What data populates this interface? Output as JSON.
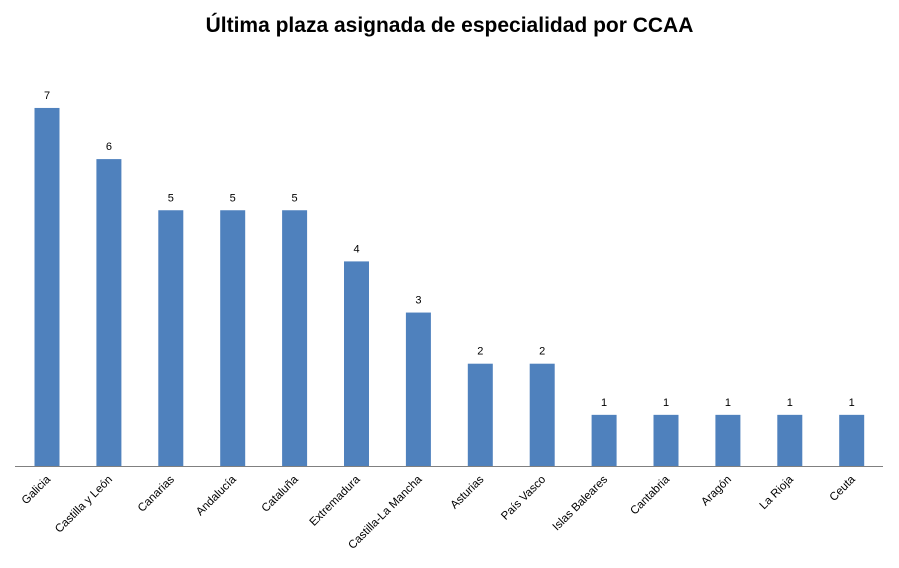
{
  "chart_data": {
    "type": "bar",
    "title": "Última plaza asignada de especialidad por CCAA",
    "xlabel": "",
    "ylabel": "",
    "categories": [
      "Galicia",
      "Castilla y León",
      "Canarias",
      "Andalucía",
      "Cataluña",
      "Extremadura",
      "Castilla-La Mancha",
      "Asturias",
      "País Vasco",
      "Islas Baleares",
      "Cantabria",
      "Aragón",
      "La Rioja",
      "Ceuta"
    ],
    "values": [
      7,
      6,
      5,
      5,
      5,
      4,
      3,
      2,
      2,
      1,
      1,
      1,
      1,
      1
    ],
    "ylim": [
      0,
      7
    ],
    "grid": false,
    "legend": "none",
    "bar_color": "#4F81BD",
    "axis_color": "#808080"
  }
}
